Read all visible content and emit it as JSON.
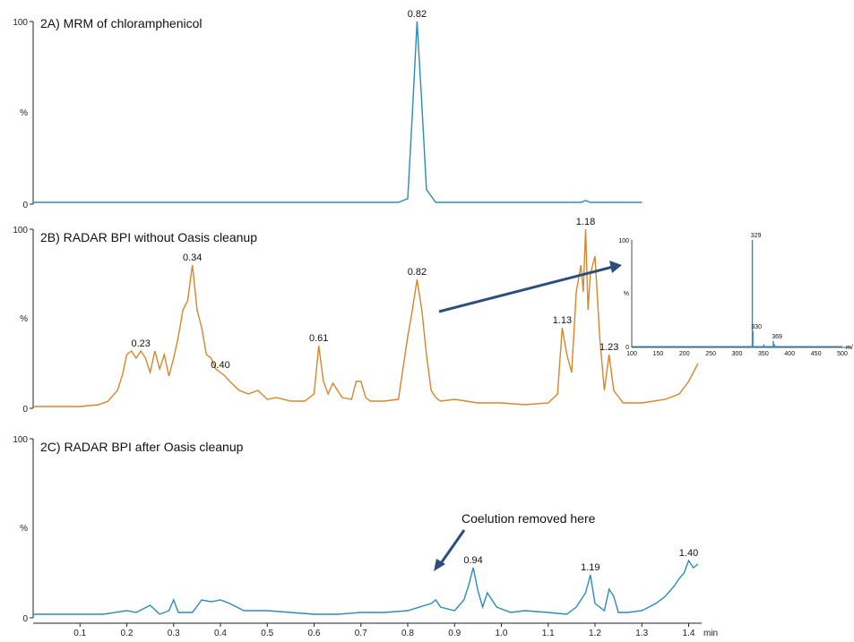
{
  "chart_data": {
    "type": "line",
    "x_axis": {
      "range": [
        0,
        1.43
      ],
      "ticks": [
        "0.1",
        "0.2",
        "0.3",
        "0.4",
        "0.5",
        "0.6",
        "0.7",
        "0.8",
        "0.9",
        "1.0",
        "1.1",
        "1.2",
        "1.3",
        "1.4"
      ],
      "unit": "min"
    },
    "y_axis": {
      "range": [
        0,
        100
      ],
      "tick_labels": [
        "0",
        "%",
        "100"
      ]
    },
    "panels": [
      {
        "title": "2A) MRM of chloramphenicol",
        "color": "#2a8cb8",
        "peaks": [
          {
            "x": 0.82,
            "label": "0.82"
          }
        ],
        "x": [
          0.0,
          0.78,
          0.8,
          0.81,
          0.82,
          0.83,
          0.84,
          0.86,
          1.17,
          1.18,
          1.19,
          1.3
        ],
        "y": [
          1,
          1,
          3,
          50,
          100,
          55,
          8,
          1,
          1,
          2,
          1,
          1
        ]
      },
      {
        "title": "2B) RADAR BPI without Oasis cleanup",
        "color": "#d7862b",
        "peaks": [
          {
            "x": 0.23,
            "label": "0.23"
          },
          {
            "x": 0.34,
            "label": "0.34"
          },
          {
            "x": 0.4,
            "label": "0.40"
          },
          {
            "x": 0.61,
            "label": "0.61"
          },
          {
            "x": 0.82,
            "label": "0.82"
          },
          {
            "x": 1.13,
            "label": "1.13"
          },
          {
            "x": 1.18,
            "label": "1.18"
          },
          {
            "x": 1.23,
            "label": "1.23"
          }
        ],
        "x": [
          0.0,
          0.1,
          0.14,
          0.16,
          0.18,
          0.19,
          0.2,
          0.21,
          0.22,
          0.23,
          0.24,
          0.25,
          0.26,
          0.27,
          0.28,
          0.29,
          0.3,
          0.31,
          0.32,
          0.33,
          0.34,
          0.35,
          0.36,
          0.37,
          0.38,
          0.39,
          0.4,
          0.41,
          0.42,
          0.44,
          0.46,
          0.48,
          0.5,
          0.52,
          0.55,
          0.58,
          0.6,
          0.61,
          0.62,
          0.63,
          0.64,
          0.66,
          0.68,
          0.69,
          0.7,
          0.71,
          0.72,
          0.75,
          0.78,
          0.8,
          0.81,
          0.82,
          0.83,
          0.84,
          0.85,
          0.86,
          0.87,
          0.9,
          0.95,
          1.0,
          1.05,
          1.1,
          1.12,
          1.13,
          1.14,
          1.15,
          1.16,
          1.17,
          1.175,
          1.18,
          1.185,
          1.19,
          1.2,
          1.21,
          1.22,
          1.23,
          1.24,
          1.26,
          1.3,
          1.35,
          1.38,
          1.4,
          1.42
        ],
        "y": [
          1,
          1,
          2,
          4,
          10,
          18,
          30,
          32,
          28,
          32,
          28,
          20,
          32,
          22,
          30,
          18,
          28,
          40,
          55,
          60,
          80,
          55,
          45,
          30,
          28,
          22,
          20,
          18,
          15,
          10,
          8,
          10,
          5,
          6,
          4,
          4,
          8,
          35,
          15,
          8,
          14,
          6,
          5,
          15,
          15,
          6,
          4,
          4,
          5,
          40,
          55,
          72,
          55,
          30,
          10,
          6,
          4,
          5,
          3,
          3,
          2,
          3,
          8,
          45,
          30,
          20,
          65,
          80,
          65,
          100,
          55,
          75,
          85,
          40,
          10,
          30,
          10,
          3,
          3,
          5,
          8,
          15,
          25
        ]
      },
      {
        "title": "2C) RADAR BPI after Oasis cleanup",
        "color": "#2a8cb8",
        "peaks": [
          {
            "x": 0.94,
            "label": "0.94"
          },
          {
            "x": 1.19,
            "label": "1.19"
          },
          {
            "x": 1.4,
            "label": "1.40"
          }
        ],
        "annotation": "Coelution removed here",
        "x": [
          0.0,
          0.15,
          0.2,
          0.22,
          0.25,
          0.27,
          0.29,
          0.3,
          0.31,
          0.34,
          0.36,
          0.38,
          0.4,
          0.42,
          0.45,
          0.5,
          0.55,
          0.6,
          0.65,
          0.7,
          0.75,
          0.8,
          0.85,
          0.86,
          0.87,
          0.9,
          0.92,
          0.93,
          0.94,
          0.95,
          0.96,
          0.97,
          0.98,
          0.99,
          1.0,
          1.02,
          1.05,
          1.1,
          1.14,
          1.16,
          1.18,
          1.19,
          1.2,
          1.22,
          1.23,
          1.24,
          1.25,
          1.27,
          1.3,
          1.33,
          1.35,
          1.37,
          1.38,
          1.39,
          1.4,
          1.41,
          1.42
        ],
        "y": [
          2,
          2,
          4,
          3,
          7,
          2,
          4,
          10,
          3,
          3,
          10,
          9,
          10,
          8,
          4,
          4,
          3,
          2,
          2,
          3,
          3,
          4,
          8,
          10,
          6,
          4,
          10,
          18,
          28,
          15,
          6,
          14,
          10,
          6,
          5,
          3,
          4,
          3,
          2,
          6,
          14,
          24,
          8,
          4,
          16,
          12,
          3,
          3,
          4,
          8,
          12,
          18,
          22,
          25,
          32,
          28,
          30
        ]
      }
    ],
    "inset": {
      "type": "bar",
      "x_ticks": [
        "100",
        "150",
        "200",
        "250",
        "300",
        "350",
        "400",
        "450",
        "500"
      ],
      "x_range": [
        100,
        500
      ],
      "y_ticks": [
        "0",
        "%",
        "100"
      ],
      "unit_partial": "m/",
      "peaks": [
        {
          "x": 329,
          "y": 100,
          "label": "329"
        },
        {
          "x": 330,
          "y": 15,
          "label": "330"
        },
        {
          "x": 351,
          "y": 3
        },
        {
          "x": 369,
          "y": 6,
          "label": "369"
        },
        {
          "x": 371,
          "y": 3
        }
      ],
      "color": "#2a8cb8"
    },
    "arrow_color": "#2c4e7c"
  }
}
